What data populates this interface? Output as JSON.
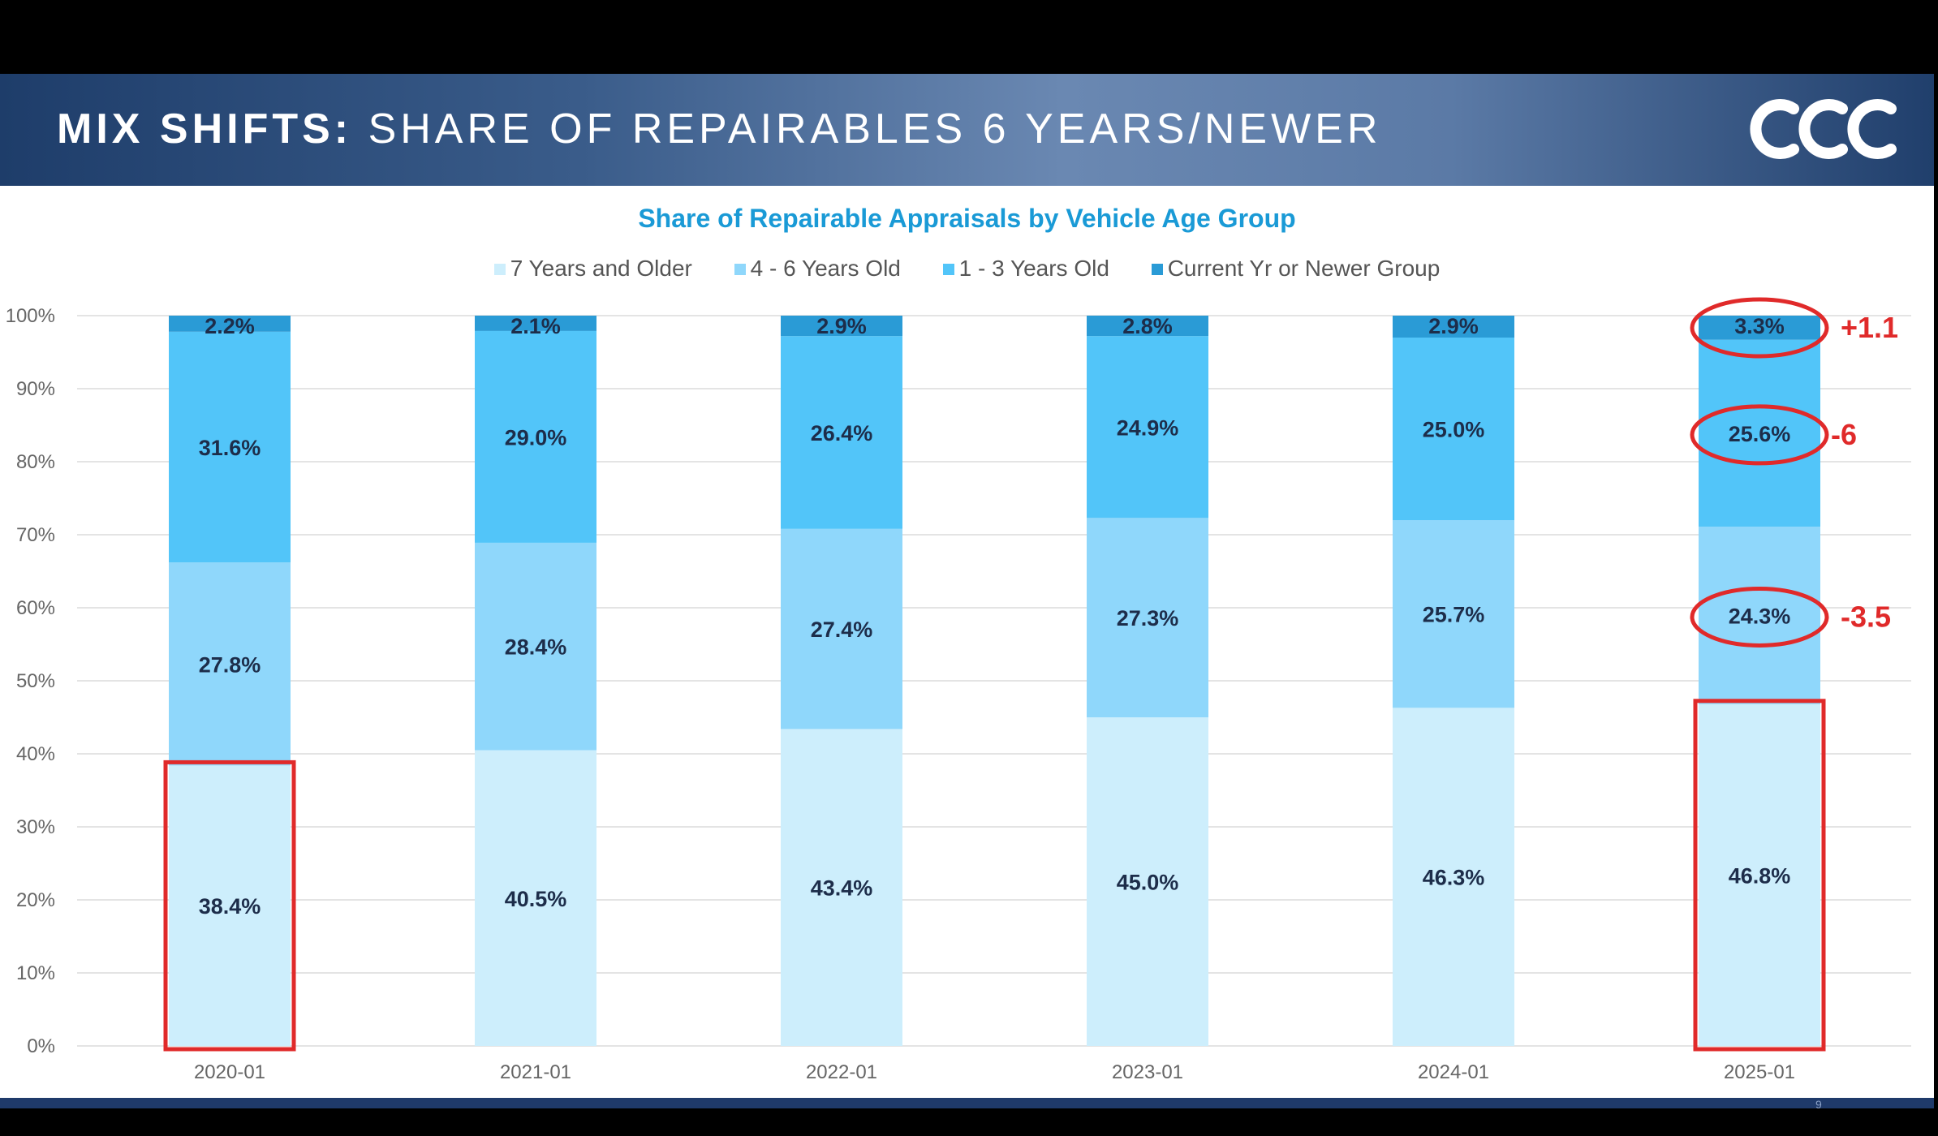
{
  "header": {
    "title_bold": "MIX SHIFTS:",
    "title_rest": "SHARE OF REPAIRABLES 6 YEARS/NEWER",
    "logo_icon": "ccc-logo-icon"
  },
  "page_number": "9",
  "colors": {
    "seven_plus": "#cdeefc",
    "four_six": "#8fd7fb",
    "one_three": "#52c5f9",
    "current": "#2a9bd6",
    "annotation": "#e02a2a",
    "title_blue": "#1a9ad6"
  },
  "chart_data": {
    "type": "bar",
    "stacked": true,
    "title": "Share of Repairable Appraisals by Vehicle Age Group",
    "categories": [
      "2020-01",
      "2021-01",
      "2022-01",
      "2023-01",
      "2024-01",
      "2025-01"
    ],
    "series": [
      {
        "name": "7 Years and Older",
        "values": [
          38.4,
          40.5,
          43.4,
          45.0,
          46.3,
          46.8
        ],
        "labels": [
          "38.4%",
          "40.5%",
          "43.4%",
          "45.0%",
          "46.3%",
          "46.8%"
        ]
      },
      {
        "name": "4 - 6 Years Old",
        "values": [
          27.8,
          28.4,
          27.4,
          27.3,
          25.7,
          24.3
        ],
        "labels": [
          "27.8%",
          "28.4%",
          "27.4%",
          "27.3%",
          "25.7%",
          "24.3%"
        ]
      },
      {
        "name": "1 - 3 Years Old",
        "values": [
          31.6,
          29.0,
          26.4,
          24.9,
          25.0,
          25.6
        ],
        "labels": [
          "31.6%",
          "29.0%",
          "26.4%",
          "24.9%",
          "25.0%",
          "25.6%"
        ]
      },
      {
        "name": "Current Yr or Newer Group",
        "values": [
          2.2,
          2.1,
          2.9,
          2.8,
          2.9,
          3.3
        ],
        "labels": [
          "2.2%",
          "2.1%",
          "2.9%",
          "2.8%",
          "2.9%",
          "3.3%"
        ]
      }
    ],
    "ylim": [
      0,
      100
    ],
    "yticks": [
      "0%",
      "10%",
      "20%",
      "30%",
      "40%",
      "50%",
      "60%",
      "70%",
      "80%",
      "90%",
      "100%"
    ],
    "grid": true,
    "legend": "top-center",
    "annotations": [
      {
        "text": "+1.1",
        "category": "2025-01",
        "series": "Current Yr or Newer Group"
      },
      {
        "text": "-6",
        "category": "2025-01",
        "series": "1 - 3 Years Old"
      },
      {
        "text": "-3.5",
        "category": "2025-01",
        "series": "4 - 6 Years Old"
      }
    ],
    "highlights": [
      {
        "category": "2020-01",
        "series": "7 Years and Older"
      },
      {
        "category": "2025-01",
        "series": "7 Years and Older"
      }
    ]
  }
}
